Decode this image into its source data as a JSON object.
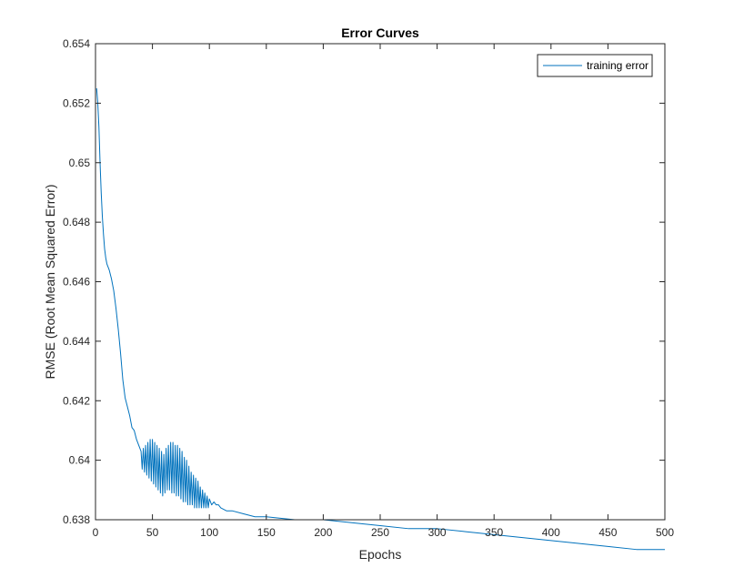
{
  "chart_data": {
    "type": "line",
    "title": "Error Curves",
    "xlabel": "Epochs",
    "ylabel": "RMSE (Root Mean Squared Error)",
    "xlim": [
      0,
      500
    ],
    "ylim": [
      0.638,
      0.654
    ],
    "x_ticks": [
      0,
      50,
      100,
      150,
      200,
      250,
      300,
      350,
      400,
      450,
      500
    ],
    "x_tick_labels": [
      "0",
      "50",
      "100",
      "150",
      "200",
      "250",
      "300",
      "350",
      "400",
      "450",
      "500"
    ],
    "y_ticks": [
      0.638,
      0.64,
      0.642,
      0.644,
      0.646,
      0.648,
      0.65,
      0.652,
      0.654
    ],
    "y_tick_labels": [
      "0.638",
      "0.64",
      "0.642",
      "0.644",
      "0.646",
      "0.648",
      "0.65",
      "0.652",
      "0.654"
    ],
    "grid": false,
    "legend_position": "top-right",
    "series": [
      {
        "name": "training error",
        "color": "#0072BD",
        "x": [
          1,
          2,
          3,
          4,
          5,
          6,
          7,
          8,
          9,
          10,
          12,
          14,
          16,
          18,
          20,
          22,
          24,
          26,
          28,
          30,
          32,
          34,
          36,
          38,
          40,
          41,
          42,
          43,
          44,
          45,
          46,
          47,
          48,
          49,
          50,
          51,
          52,
          53,
          54,
          55,
          56,
          57,
          58,
          59,
          60,
          61,
          62,
          63,
          64,
          65,
          66,
          67,
          68,
          69,
          70,
          71,
          72,
          73,
          74,
          75,
          76,
          77,
          78,
          79,
          80,
          81,
          82,
          83,
          84,
          85,
          86,
          87,
          88,
          89,
          90,
          91,
          92,
          93,
          94,
          95,
          96,
          97,
          98,
          99,
          100,
          102,
          104,
          106,
          108,
          110,
          115,
          120,
          130,
          140,
          150,
          175,
          200,
          225,
          250,
          275,
          300,
          325,
          350,
          375,
          400,
          425,
          450,
          475,
          500
        ],
        "y": [
          0.6525,
          0.652,
          0.6512,
          0.65,
          0.649,
          0.6482,
          0.6476,
          0.6471,
          0.6468,
          0.6466,
          0.6464,
          0.6461,
          0.6457,
          0.6451,
          0.6444,
          0.6436,
          0.6427,
          0.6421,
          0.6418,
          0.6415,
          0.6411,
          0.641,
          0.6407,
          0.6405,
          0.6403,
          0.6397,
          0.6404,
          0.6396,
          0.6405,
          0.6395,
          0.6406,
          0.6394,
          0.6407,
          0.6393,
          0.6407,
          0.6392,
          0.6406,
          0.6391,
          0.6405,
          0.639,
          0.6404,
          0.6389,
          0.6403,
          0.6388,
          0.6402,
          0.6389,
          0.6404,
          0.639,
          0.6405,
          0.639,
          0.6406,
          0.6389,
          0.6406,
          0.6389,
          0.6405,
          0.6388,
          0.6405,
          0.6388,
          0.6404,
          0.6387,
          0.6403,
          0.6386,
          0.6401,
          0.6386,
          0.64,
          0.6385,
          0.6398,
          0.6385,
          0.6396,
          0.6385,
          0.6395,
          0.6384,
          0.6394,
          0.6384,
          0.6393,
          0.6384,
          0.6391,
          0.6384,
          0.639,
          0.6384,
          0.6389,
          0.6384,
          0.6388,
          0.6384,
          0.6387,
          0.6385,
          0.6386,
          0.6385,
          0.6385,
          0.6384,
          0.6383,
          0.6383,
          0.6382,
          0.6381,
          0.6381,
          0.638,
          0.638,
          0.6379,
          0.6378,
          0.6377,
          0.6377,
          0.6376,
          0.6375,
          0.6374,
          0.6373,
          0.6372,
          0.6371,
          0.637,
          0.637
        ]
      }
    ]
  }
}
